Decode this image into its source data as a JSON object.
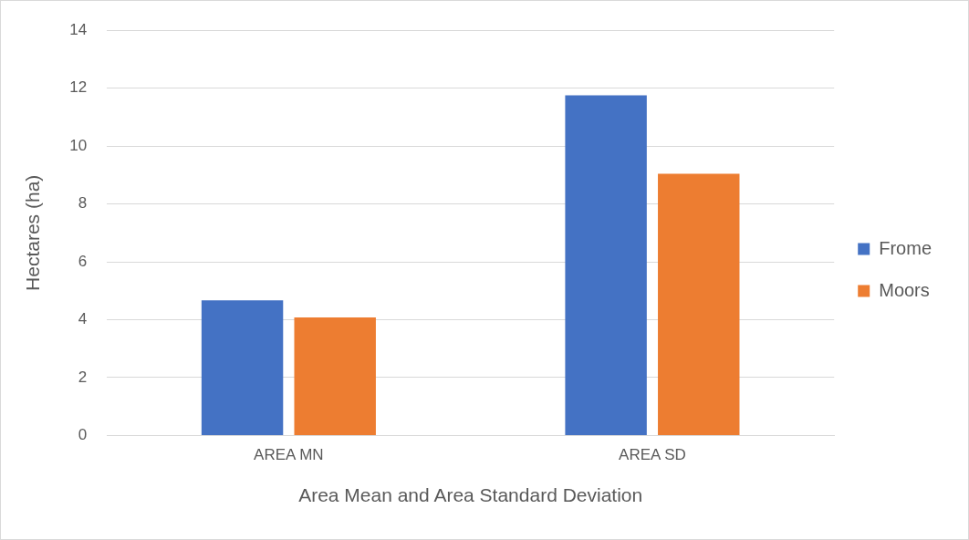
{
  "chart_data": {
    "type": "bar",
    "xlabel": "Area Mean and Area Standard Deviation",
    "ylabel": "Hectares (ha)",
    "categories": [
      "AREA MN",
      "AREA SD"
    ],
    "series": [
      {
        "name": "Frome",
        "color": "#4472c4",
        "values": [
          4.67,
          11.75
        ]
      },
      {
        "name": "Moors",
        "color": "#ed7d31",
        "values": [
          4.08,
          9.04
        ]
      }
    ],
    "ylim": [
      0,
      14
    ],
    "yticks": [
      0,
      2,
      4,
      6,
      8,
      10,
      12,
      14
    ],
    "grid": "y",
    "legend": "right"
  }
}
